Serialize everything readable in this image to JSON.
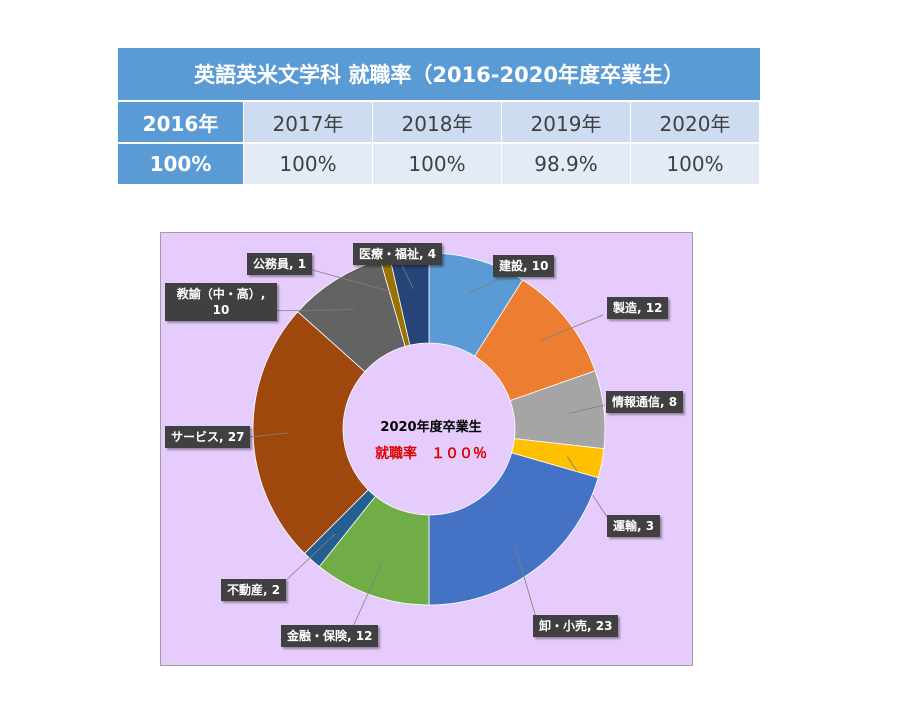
{
  "table": {
    "title": "英語英米文学科 就職率（2016-2020年度卒業生）",
    "years": [
      "2016年",
      "2017年",
      "2018年",
      "2019年",
      "2020年"
    ],
    "rates": [
      "100%",
      "100%",
      "100%",
      "98.9%",
      "100%"
    ]
  },
  "chart_data": {
    "type": "pie",
    "donut": true,
    "center_title": "2020年度卒業生",
    "center_rate": "就職率　１００％",
    "slices": [
      {
        "label": "建設",
        "value": 10,
        "color": "#5b9bd5",
        "text": "建設, 10"
      },
      {
        "label": "製造",
        "value": 12,
        "color": "#ed7d31",
        "text": "製造, 12"
      },
      {
        "label": "情報通信",
        "value": 8,
        "color": "#a5a5a5",
        "text": "情報通信, 8"
      },
      {
        "label": "運輸",
        "value": 3,
        "color": "#ffc000",
        "text": "運輸, 3"
      },
      {
        "label": "卸・小売",
        "value": 23,
        "color": "#4472c4",
        "text": "卸・小売, 23"
      },
      {
        "label": "金融・保険",
        "value": 12,
        "color": "#70ad47",
        "text": "金融・保険, 12"
      },
      {
        "label": "不動産",
        "value": 2,
        "color": "#255e91",
        "text": "不動産, 2"
      },
      {
        "label": "サービス",
        "value": 27,
        "color": "#9e480e",
        "text": "サービス, 27"
      },
      {
        "label": "教諭（中・高）",
        "value": 10,
        "color": "#636363",
        "text": "教諭（中・高）, 10"
      },
      {
        "label": "公務員",
        "value": 1,
        "color": "#997300",
        "text": "公務員, 1"
      },
      {
        "label": "医療・福祉",
        "value": 4,
        "color": "#264478",
        "text": "医療・福祉, 4"
      }
    ]
  }
}
